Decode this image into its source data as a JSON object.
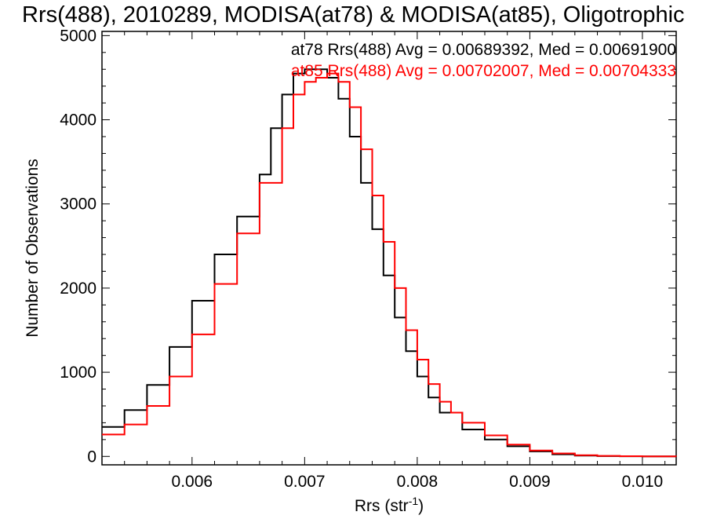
{
  "chart_data": {
    "type": "line",
    "title": "Rrs(488), 2010289, MODISA(at78) & MODISA(at85), Oligotrophic",
    "xlabel": "Rrs (str",
    "xlabel_sup": "-1",
    "xlabel_suffix": ")",
    "ylabel": "Number of Observations",
    "xlim": [
      0.0052,
      0.0103
    ],
    "ylim": [
      -100,
      5050
    ],
    "xticks": [
      0.006,
      0.007,
      0.008,
      0.009,
      0.01
    ],
    "xtick_labels": [
      "0.006",
      "0.007",
      "0.008",
      "0.009",
      "0.010"
    ],
    "yticks": [
      0,
      1000,
      2000,
      3000,
      4000,
      5000
    ],
    "ytick_labels": [
      "0",
      "1000",
      "2000",
      "3000",
      "4000",
      "5000"
    ],
    "grid": false,
    "legend_position": "top-right",
    "series": [
      {
        "name": "at78",
        "color": "#000000",
        "legend": "at78 Rrs(488) Avg = 0.00689392, Med = 0.00691900",
        "x": [
          0.0052,
          0.0054,
          0.0056,
          0.0058,
          0.006,
          0.0062,
          0.0064,
          0.0066,
          0.0067,
          0.0068,
          0.0069,
          0.007,
          0.0071,
          0.0072,
          0.0073,
          0.0074,
          0.0075,
          0.0076,
          0.0077,
          0.0078,
          0.0079,
          0.008,
          0.0081,
          0.0082,
          0.0084,
          0.0086,
          0.0088,
          0.009,
          0.0092,
          0.0094,
          0.0096,
          0.0098,
          0.01,
          0.0103
        ],
        "y": [
          350,
          550,
          850,
          1300,
          1850,
          2400,
          2850,
          3350,
          3900,
          4300,
          4550,
          4600,
          4600,
          4500,
          4250,
          3800,
          3250,
          2700,
          2150,
          1650,
          1250,
          950,
          700,
          520,
          320,
          200,
          120,
          60,
          25,
          10,
          4,
          2,
          0,
          0
        ]
      },
      {
        "name": "at85",
        "color": "#ff0000",
        "legend": "at85 Rrs(488) Avg = 0.00702007, Med = 0.00704333",
        "x": [
          0.0052,
          0.0054,
          0.0056,
          0.0058,
          0.006,
          0.0062,
          0.0064,
          0.0066,
          0.0068,
          0.0069,
          0.007,
          0.0071,
          0.0072,
          0.0073,
          0.0074,
          0.0075,
          0.0076,
          0.0077,
          0.0078,
          0.0079,
          0.008,
          0.0081,
          0.0082,
          0.0083,
          0.0084,
          0.0086,
          0.0088,
          0.009,
          0.0092,
          0.0094,
          0.0096,
          0.0098,
          0.01,
          0.0103
        ],
        "y": [
          260,
          380,
          600,
          950,
          1450,
          2050,
          2650,
          3250,
          3900,
          4300,
          4450,
          4500,
          4550,
          4450,
          4150,
          3650,
          3100,
          2550,
          2000,
          1500,
          1150,
          860,
          650,
          520,
          400,
          250,
          140,
          70,
          35,
          15,
          6,
          3,
          1,
          0
        ]
      }
    ]
  }
}
